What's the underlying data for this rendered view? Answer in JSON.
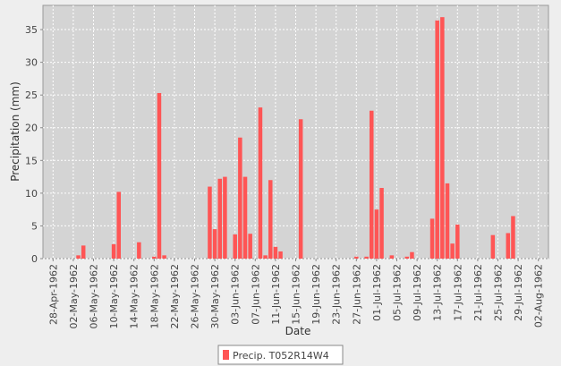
{
  "chart_data": {
    "type": "bar",
    "x_label": "Date",
    "y_label": "Precipitation (mm)",
    "x": [
      "1962-05-03",
      "1962-05-04",
      "1962-05-10",
      "1962-05-11",
      "1962-05-15",
      "1962-05-18",
      "1962-05-19",
      "1962-05-20",
      "1962-05-29",
      "1962-05-30",
      "1962-05-31",
      "1962-06-01",
      "1962-06-03",
      "1962-06-04",
      "1962-06-05",
      "1962-06-06",
      "1962-06-08",
      "1962-06-09",
      "1962-06-10",
      "1962-06-11",
      "1962-06-12",
      "1962-06-16",
      "1962-06-27",
      "1962-06-29",
      "1962-06-30",
      "1962-07-01",
      "1962-07-02",
      "1962-07-04",
      "1962-07-07",
      "1962-07-08",
      "1962-07-12",
      "1962-07-13",
      "1962-07-14",
      "1962-07-15",
      "1962-07-16",
      "1962-07-17",
      "1962-07-24",
      "1962-07-27",
      "1962-07-28"
    ],
    "series": [
      {
        "name": "Precip. T052R14W4",
        "color": "#ff5555",
        "values": [
          0.5,
          2.0,
          2.2,
          10.2,
          2.5,
          0.3,
          25.3,
          0.5,
          11.0,
          4.5,
          12.2,
          12.5,
          3.7,
          18.5,
          12.5,
          3.8,
          23.1,
          0.5,
          12.0,
          1.8,
          1.1,
          21.3,
          0.3,
          0.3,
          22.6,
          7.5,
          10.8,
          0.5,
          0.3,
          1.0,
          6.1,
          36.4,
          36.9,
          11.5,
          2.3,
          5.2,
          3.6,
          3.9,
          6.5
        ]
      }
    ],
    "xlim": [
      "1962-04-26",
      "1962-08-04"
    ],
    "xticks": [
      {
        "value": "1962-04-28",
        "label": "28-Apr-1962"
      },
      {
        "value": "1962-05-02",
        "label": "02-May-1962"
      },
      {
        "value": "1962-05-06",
        "label": "06-May-1962"
      },
      {
        "value": "1962-05-10",
        "label": "10-May-1962"
      },
      {
        "value": "1962-05-14",
        "label": "14-May-1962"
      },
      {
        "value": "1962-05-18",
        "label": "18-May-1962"
      },
      {
        "value": "1962-05-22",
        "label": "22-May-1962"
      },
      {
        "value": "1962-05-26",
        "label": "26-May-1962"
      },
      {
        "value": "1962-05-30",
        "label": "30-May-1962"
      },
      {
        "value": "1962-06-03",
        "label": "03-Jun-1962"
      },
      {
        "value": "1962-06-07",
        "label": "07-Jun-1962"
      },
      {
        "value": "1962-06-11",
        "label": "11-Jun-1962"
      },
      {
        "value": "1962-06-15",
        "label": "15-Jun-1962"
      },
      {
        "value": "1962-06-19",
        "label": "19-Jun-1962"
      },
      {
        "value": "1962-06-23",
        "label": "23-Jun-1962"
      },
      {
        "value": "1962-06-27",
        "label": "27-Jun-1962"
      },
      {
        "value": "1962-07-01",
        "label": "01-Jul-1962"
      },
      {
        "value": "1962-07-05",
        "label": "05-Jul-1962"
      },
      {
        "value": "1962-07-09",
        "label": "09-Jul-1962"
      },
      {
        "value": "1962-07-13",
        "label": "13-Jul-1962"
      },
      {
        "value": "1962-07-17",
        "label": "17-Jul-1962"
      },
      {
        "value": "1962-07-21",
        "label": "21-Jul-1962"
      },
      {
        "value": "1962-07-25",
        "label": "25-Jul-1962"
      },
      {
        "value": "1962-07-29",
        "label": "29-Jul-1962"
      },
      {
        "value": "1962-08-02",
        "label": "02-Aug-1962"
      }
    ],
    "ylim": [
      0,
      38.7
    ],
    "yticks": [
      0,
      5,
      10,
      15,
      20,
      25,
      30,
      35
    ],
    "grid": true
  }
}
